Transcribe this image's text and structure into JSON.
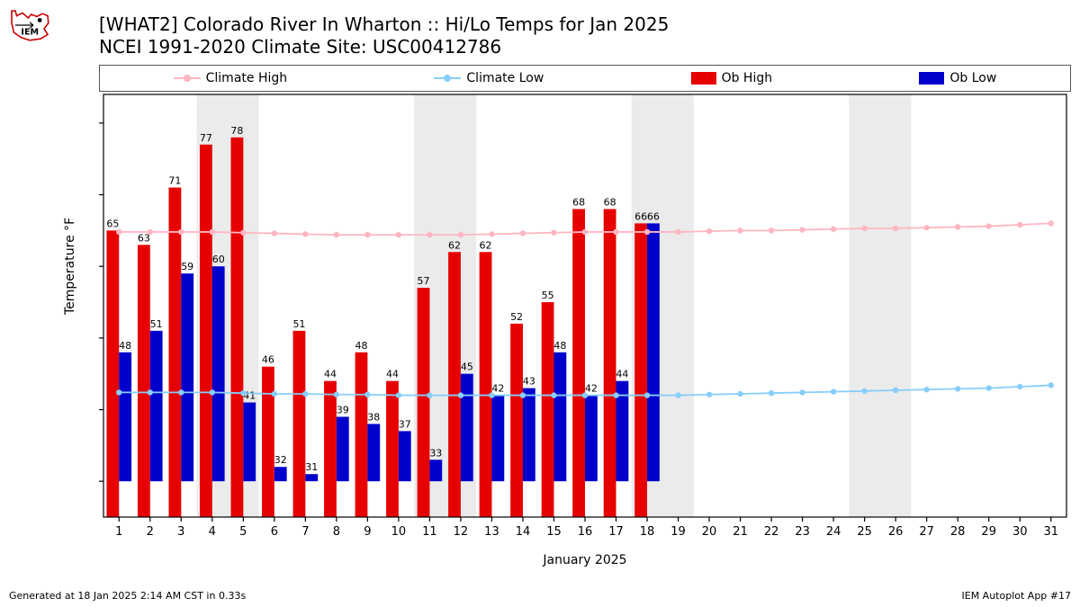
{
  "title_lines": [
    "[WHAT2] Colorado River In Wharton :: Hi/Lo Temps for Jan 2025",
    "NCEI 1991-2020 Climate Site: USC00412786"
  ],
  "ylabel": "Temperature °F",
  "xlabel": "January 2025",
  "footer_left": "Generated at 18 Jan 2025 2:14 AM CST in 0.33s",
  "footer_right": "IEM Autoplot App #17",
  "legend": {
    "climate_high": "Climate High",
    "climate_low": "Climate Low",
    "ob_high": "Ob High",
    "ob_low": "Ob Low"
  },
  "chart": {
    "type": "bar-line",
    "days": [
      1,
      2,
      3,
      4,
      5,
      6,
      7,
      8,
      9,
      10,
      11,
      12,
      13,
      14,
      15,
      16,
      17,
      18,
      19,
      20,
      21,
      22,
      23,
      24,
      25,
      26,
      27,
      28,
      29,
      30,
      31
    ],
    "ylim": [
      25,
      84
    ],
    "yticks": [
      30,
      40,
      50,
      60,
      70,
      80
    ],
    "bar_group_width": 0.8,
    "ob_high": [
      65,
      63,
      71,
      77,
      78,
      46,
      51,
      44,
      48,
      44,
      57,
      62,
      62,
      52,
      55,
      68,
      68,
      66
    ],
    "ob_low": [
      48,
      51,
      59,
      60,
      41,
      32,
      31,
      39,
      38,
      37,
      33,
      45,
      42,
      43,
      48,
      42,
      44,
      66
    ],
    "ob_high_baseline": 25,
    "ob_low_baseline": 30,
    "climate_high": [
      64.8,
      64.8,
      64.8,
      64.8,
      64.7,
      64.6,
      64.5,
      64.4,
      64.4,
      64.4,
      64.4,
      64.4,
      64.5,
      64.6,
      64.7,
      64.8,
      64.8,
      64.8,
      64.8,
      64.9,
      65.0,
      65.0,
      65.1,
      65.2,
      65.3,
      65.3,
      65.4,
      65.5,
      65.6,
      65.8,
      66.0
    ],
    "climate_low": [
      42.4,
      42.4,
      42.4,
      42.4,
      42.3,
      42.2,
      42.2,
      42.1,
      42.1,
      42.0,
      42.0,
      42.0,
      42.0,
      42.0,
      42.0,
      42.0,
      42.0,
      42.0,
      42.0,
      42.1,
      42.2,
      42.3,
      42.4,
      42.5,
      42.6,
      42.7,
      42.8,
      42.9,
      43.0,
      43.2,
      43.4
    ],
    "weekend_bands": [
      [
        4,
        5
      ],
      [
        11,
        12
      ],
      [
        18,
        19
      ],
      [
        25,
        26
      ]
    ],
    "colors": {
      "ob_high": "#e60000",
      "ob_low": "#0000cc",
      "climate_high": "#ffb6c1",
      "climate_low": "#87cefa",
      "weekend": "#ebebeb",
      "axis": "#000000",
      "bg": "#ffffff"
    },
    "label_fontsize": 11,
    "tick_fontsize": 13,
    "marker_radius": 3.2,
    "line_width": 1.8
  }
}
